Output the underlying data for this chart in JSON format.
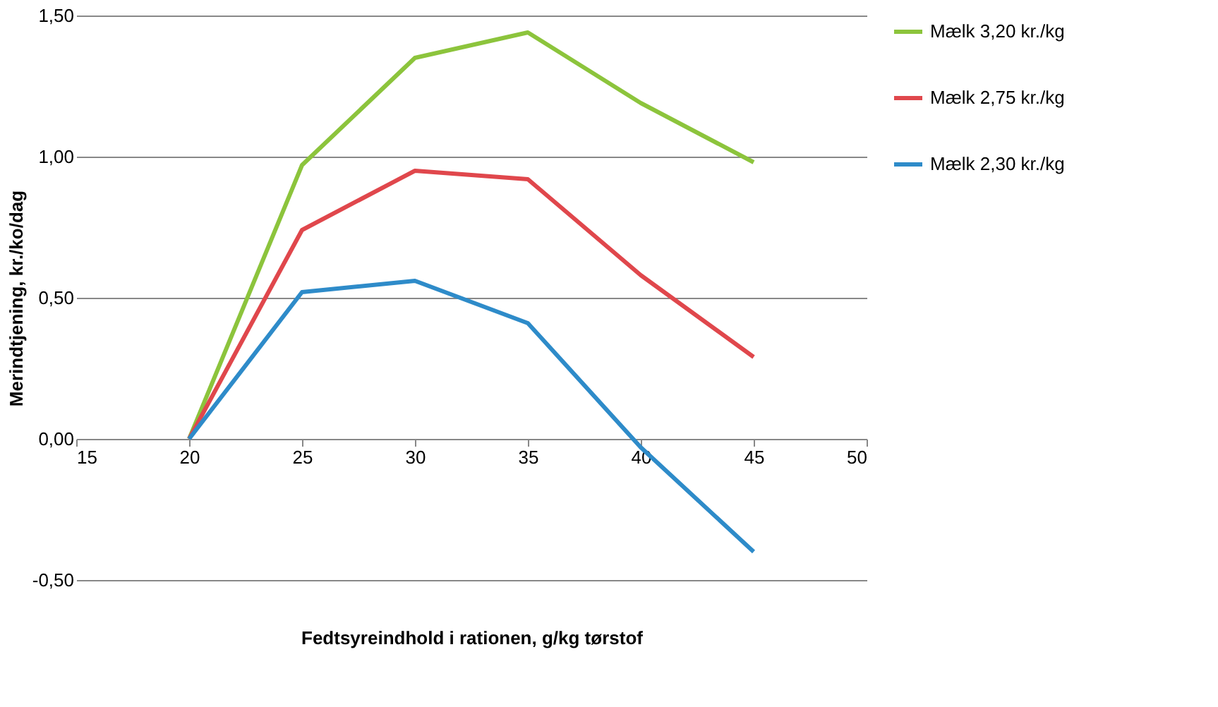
{
  "chart_data": {
    "type": "line",
    "xlabel": "Fedtsyreindhold i rationen, g/kg tørstof",
    "ylabel": "Merindtjening, kr./ko/dag",
    "x": [
      20,
      25,
      30,
      35,
      40,
      45
    ],
    "series": [
      {
        "name": "Mælk 3,20 kr./kg",
        "color": "#8cc43c",
        "values": [
          0,
          0.97,
          1.35,
          1.44,
          1.19,
          0.98
        ]
      },
      {
        "name": "Mælk 2,75 kr./kg",
        "color": "#e0474c",
        "values": [
          0,
          0.74,
          0.95,
          0.92,
          0.58,
          0.29
        ]
      },
      {
        "name": "Mælk 2,30 kr./kg",
        "color": "#2e8bc9",
        "values": [
          0,
          0.52,
          0.56,
          0.41,
          -0.03,
          -0.4
        ]
      }
    ],
    "xlim": [
      15,
      50
    ],
    "xticks": [
      15,
      20,
      25,
      30,
      35,
      40,
      45,
      50
    ],
    "ylim": [
      -0.5,
      1.5
    ],
    "yticks": [
      {
        "value": -0.5,
        "label": "-0,50"
      },
      {
        "value": 0,
        "label": "0,00"
      },
      {
        "value": 0.5,
        "label": "0,50"
      },
      {
        "value": 1.0,
        "label": "1,00"
      },
      {
        "value": 1.5,
        "label": "1,50"
      }
    ],
    "grid": "y",
    "legend": "right",
    "marker": "none",
    "line_style": "solid"
  }
}
